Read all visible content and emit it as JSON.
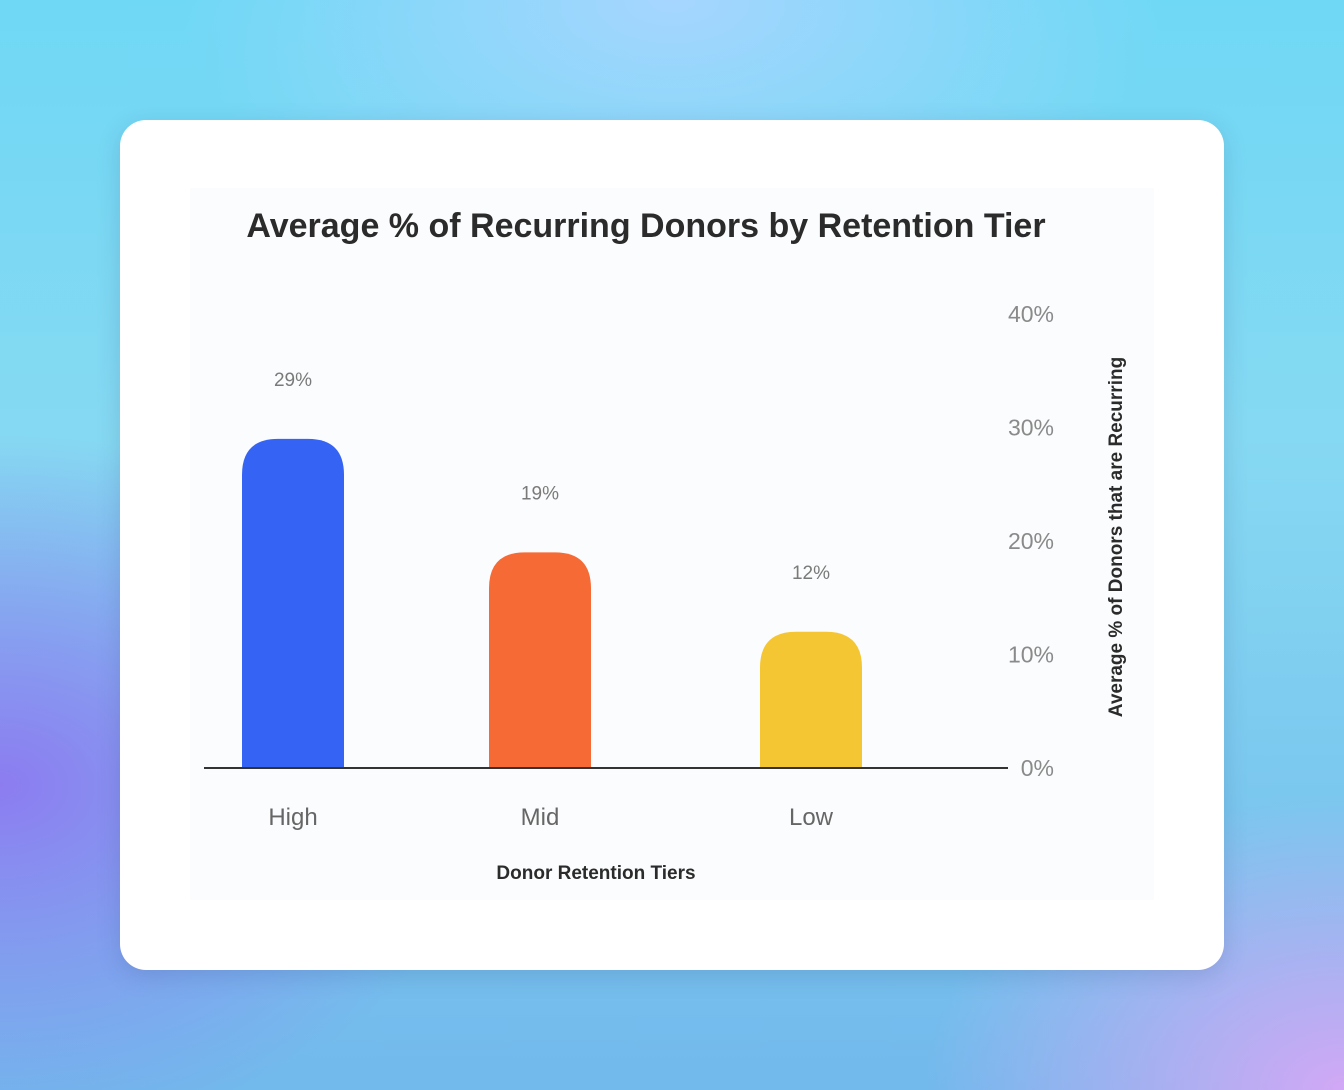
{
  "chart_data": {
    "type": "bar",
    "title": "Average % of Recurring Donors by Retention Tier",
    "xlabel": "Donor Retention Tiers",
    "ylabel": "Average % of Donors that are Recurring",
    "categories": [
      "High",
      "Mid",
      "Low"
    ],
    "values": [
      29,
      19,
      12
    ],
    "value_labels": [
      "29%",
      "19%",
      "12%"
    ],
    "y_ticks": [
      0,
      10,
      20,
      30,
      40
    ],
    "y_tick_labels": [
      "0%",
      "10%",
      "20%",
      "30%",
      "40%"
    ],
    "ylim": [
      0,
      40
    ],
    "y_axis_position": "right",
    "grid": false,
    "legend": "none",
    "colors": [
      "#3563f4",
      "#f66a36",
      "#f4c633"
    ],
    "axis_color": "#333333",
    "background": "#ffffff"
  }
}
